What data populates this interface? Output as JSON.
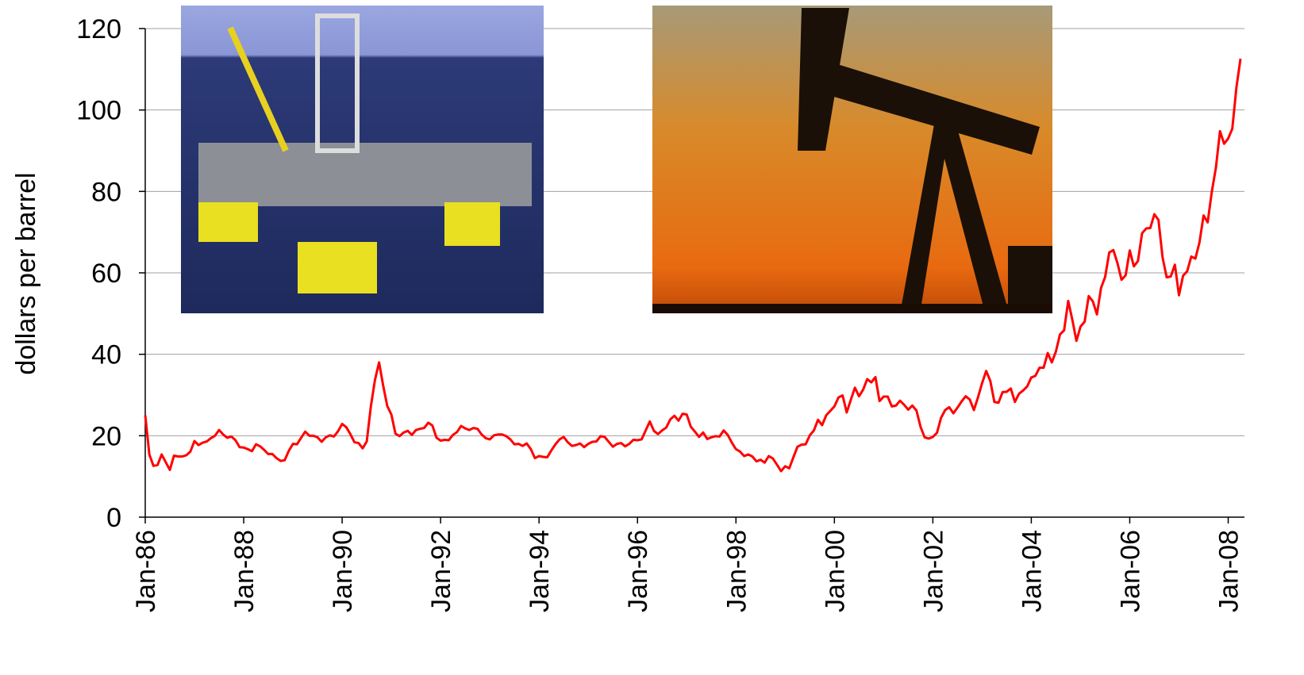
{
  "chart_data": {
    "type": "line",
    "y_label": "dollars per barrel",
    "ylim": [
      0,
      120
    ],
    "yticks": [
      0,
      20,
      40,
      60,
      80,
      100,
      120
    ],
    "grid": true,
    "xlim": [
      "1986-01",
      "2008-04"
    ],
    "xticks": [
      {
        "value": "1986-01",
        "label": "Jan-86"
      },
      {
        "value": "1988-01",
        "label": "Jan-88"
      },
      {
        "value": "1990-01",
        "label": "Jan-90"
      },
      {
        "value": "1992-01",
        "label": "Jan-92"
      },
      {
        "value": "1994-01",
        "label": "Jan-94"
      },
      {
        "value": "1996-01",
        "label": "Jan-96"
      },
      {
        "value": "1998-01",
        "label": "Jan-98"
      },
      {
        "value": "2000-01",
        "label": "Jan-00"
      },
      {
        "value": "2002-01",
        "label": "Jan-02"
      },
      {
        "value": "2004-01",
        "label": "Jan-04"
      },
      {
        "value": "2006-01",
        "label": "Jan-06"
      },
      {
        "value": "2008-01",
        "label": "Jan-08"
      }
    ],
    "x": [
      "1986-01",
      "1986-02",
      "1986-03",
      "1986-04",
      "1986-05",
      "1986-06",
      "1986-07",
      "1986-08",
      "1986-09",
      "1986-10",
      "1986-11",
      "1986-12",
      "1987-01",
      "1987-02",
      "1987-03",
      "1987-04",
      "1987-05",
      "1987-06",
      "1987-07",
      "1987-08",
      "1987-09",
      "1987-10",
      "1987-11",
      "1987-12",
      "1988-01",
      "1988-02",
      "1988-03",
      "1988-04",
      "1988-05",
      "1988-06",
      "1988-07",
      "1988-08",
      "1988-09",
      "1988-10",
      "1988-11",
      "1988-12",
      "1989-01",
      "1989-02",
      "1989-03",
      "1989-04",
      "1989-05",
      "1989-06",
      "1989-07",
      "1989-08",
      "1989-09",
      "1989-10",
      "1989-11",
      "1989-12",
      "1990-01",
      "1990-02",
      "1990-03",
      "1990-04",
      "1990-05",
      "1990-06",
      "1990-07",
      "1990-08",
      "1990-09",
      "1990-10",
      "1990-11",
      "1990-12",
      "1991-01",
      "1991-02",
      "1991-03",
      "1991-04",
      "1991-05",
      "1991-06",
      "1991-07",
      "1991-08",
      "1991-09",
      "1991-10",
      "1991-11",
      "1991-12",
      "1992-01",
      "1992-02",
      "1992-03",
      "1992-04",
      "1992-05",
      "1992-06",
      "1992-07",
      "1992-08",
      "1992-09",
      "1992-10",
      "1992-11",
      "1992-12",
      "1993-01",
      "1993-02",
      "1993-03",
      "1993-04",
      "1993-05",
      "1993-06",
      "1993-07",
      "1993-08",
      "1993-09",
      "1993-10",
      "1993-11",
      "1993-12",
      "1994-01",
      "1994-02",
      "1994-03",
      "1994-04",
      "1994-05",
      "1994-06",
      "1994-07",
      "1994-08",
      "1994-09",
      "1994-10",
      "1994-11",
      "1994-12",
      "1995-01",
      "1995-02",
      "1995-03",
      "1995-04",
      "1995-05",
      "1995-06",
      "1995-07",
      "1995-08",
      "1995-09",
      "1995-10",
      "1995-11",
      "1995-12",
      "1996-01",
      "1996-02",
      "1996-03",
      "1996-04",
      "1996-05",
      "1996-06",
      "1996-07",
      "1996-08",
      "1996-09",
      "1996-10",
      "1996-11",
      "1996-12",
      "1997-01",
      "1997-02",
      "1997-03",
      "1997-04",
      "1997-05",
      "1997-06",
      "1997-07",
      "1997-08",
      "1997-09",
      "1997-10",
      "1997-11",
      "1997-12",
      "1998-01",
      "1998-02",
      "1998-03",
      "1998-04",
      "1998-05",
      "1998-06",
      "1998-07",
      "1998-08",
      "1998-09",
      "1998-10",
      "1998-11",
      "1998-12",
      "1999-01",
      "1999-02",
      "1999-03",
      "1999-04",
      "1999-05",
      "1999-06",
      "1999-07",
      "1999-08",
      "1999-09",
      "1999-10",
      "1999-11",
      "1999-12",
      "2000-01",
      "2000-02",
      "2000-03",
      "2000-04",
      "2000-05",
      "2000-06",
      "2000-07",
      "2000-08",
      "2000-09",
      "2000-10",
      "2000-11",
      "2000-12",
      "2001-01",
      "2001-02",
      "2001-03",
      "2001-04",
      "2001-05",
      "2001-06",
      "2001-07",
      "2001-08",
      "2001-09",
      "2001-10",
      "2001-11",
      "2001-12",
      "2002-01",
      "2002-02",
      "2002-03",
      "2002-04",
      "2002-05",
      "2002-06",
      "2002-07",
      "2002-08",
      "2002-09",
      "2002-10",
      "2002-11",
      "2002-12",
      "2003-01",
      "2003-02",
      "2003-03",
      "2003-04",
      "2003-05",
      "2003-06",
      "2003-07",
      "2003-08",
      "2003-09",
      "2003-10",
      "2003-11",
      "2003-12",
      "2004-01",
      "2004-02",
      "2004-03",
      "2004-04",
      "2004-05",
      "2004-06",
      "2004-07",
      "2004-08",
      "2004-09",
      "2004-10",
      "2004-11",
      "2004-12",
      "2005-01",
      "2005-02",
      "2005-03",
      "2005-04",
      "2005-05",
      "2005-06",
      "2005-07",
      "2005-08",
      "2005-09",
      "2005-10",
      "2005-11",
      "2005-12",
      "2006-01",
      "2006-02",
      "2006-03",
      "2006-04",
      "2006-05",
      "2006-06",
      "2006-07",
      "2006-08",
      "2006-09",
      "2006-10",
      "2006-11",
      "2006-12",
      "2007-01",
      "2007-02",
      "2007-03",
      "2007-04",
      "2007-05",
      "2007-06",
      "2007-07",
      "2007-08",
      "2007-09",
      "2007-10",
      "2007-11",
      "2007-12",
      "2008-01",
      "2008-02",
      "2008-03",
      "2008-04"
    ],
    "series": [
      {
        "color": "#ff0000",
        "values": [
          25,
          15.4,
          12.6,
          12.8,
          15.4,
          13.5,
          11.6,
          15.1,
          14.9,
          14.9,
          15.2,
          16.1,
          18.7,
          17.7,
          18.3,
          18.6,
          19.4,
          20,
          21.4,
          20.3,
          19.5,
          19.8,
          18.9,
          17.2,
          17.1,
          16.7,
          16.2,
          17.9,
          17.4,
          16.5,
          15.5,
          15.5,
          14.5,
          13.8,
          14,
          16.3,
          18,
          17.9,
          19.5,
          21,
          20,
          20,
          19.6,
          18.5,
          19.6,
          20.1,
          19.8,
          21.1,
          22.9,
          22.1,
          20.4,
          18.4,
          18.2,
          16.9,
          18.6,
          27.2,
          33.7,
          38,
          32.3,
          27.3,
          25.2,
          20.5,
          19.9,
          20.8,
          21.2,
          20.2,
          21.4,
          21.7,
          21.9,
          23.2,
          22.5,
          19.5,
          18.8,
          19,
          18.9,
          20.2,
          20.9,
          22.4,
          21.8,
          21.4,
          21.9,
          21.7,
          20.3,
          19.4,
          19.1,
          20.1,
          20.3,
          20.3,
          19.9,
          19.1,
          17.9,
          18,
          17.5,
          18.1,
          16.7,
          14.5,
          15,
          14.8,
          14.7,
          16.4,
          17.9,
          19.1,
          19.7,
          18.4,
          17.5,
          17.7,
          18.1,
          17.2,
          18,
          18.5,
          18.6,
          19.9,
          19.7,
          18.5,
          17.3,
          18,
          18.2,
          17.4,
          18,
          19,
          18.9,
          19.1,
          21.3,
          23.5,
          21.2,
          20.4,
          21.3,
          22,
          24,
          24.9,
          23.7,
          25.4,
          25.2,
          22.2,
          21,
          19.7,
          20.8,
          19.2,
          19.6,
          19.9,
          19.8,
          21.3,
          20.2,
          18.3,
          16.7,
          16.1,
          15,
          15.4,
          14.9,
          13.7,
          14.1,
          13.4,
          15,
          14.4,
          12.9,
          11.3,
          12.5,
          12,
          14.7,
          17.3,
          17.8,
          17.9,
          20.1,
          21.3,
          23.9,
          22.6,
          25,
          26.1,
          27.2,
          29.4,
          29.9,
          25.7,
          28.8,
          31.8,
          29.7,
          31.3,
          33.9,
          33.1,
          34.4,
          28.5,
          29.6,
          29.6,
          27.2,
          27.4,
          28.6,
          27.6,
          26.4,
          27.4,
          26.2,
          22.2,
          19.6,
          19.3,
          19.7,
          20.7,
          24.4,
          26.3,
          27,
          25.5,
          26.9,
          28.4,
          29.7,
          28.9,
          26.3,
          29.4,
          32.9,
          35.9,
          33.5,
          28.3,
          28.1,
          30.7,
          30.8,
          31.6,
          28.3,
          30.3,
          31.1,
          32.1,
          34.3,
          34.7,
          36.7,
          36.7,
          40.3,
          38,
          40.7,
          44.9,
          45.9,
          53.1,
          48.5,
          43.3,
          46.8,
          48,
          54.3,
          53,
          49.8,
          56.3,
          59,
          65,
          65.6,
          62.4,
          58.3,
          59.4,
          65.5,
          61.6,
          62.9,
          69.7,
          70.9,
          71,
          74.4,
          73,
          63.8,
          58.9,
          59.1,
          62,
          54.5,
          59.3,
          60.4,
          64,
          63.5,
          67.5,
          74.1,
          72.4,
          79.9,
          85.8,
          94.8,
          91.7,
          93,
          95.4,
          105.5,
          112.6
        ]
      }
    ]
  }
}
